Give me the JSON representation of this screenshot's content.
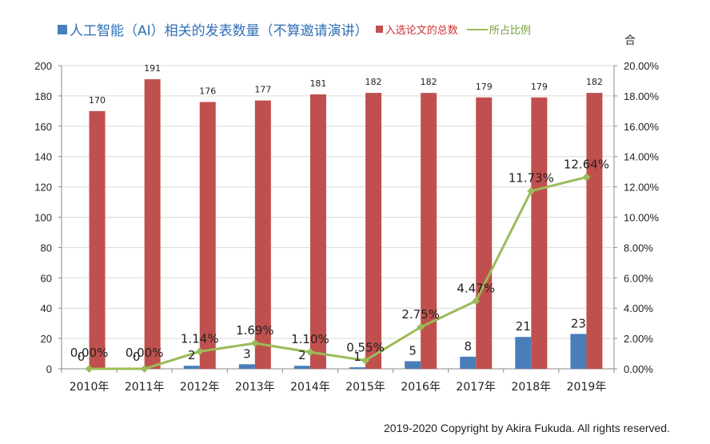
{
  "legend": {
    "blue_label": "人工智能（AI）相关的发表数量（不算邀请演讲）",
    "red_label": "入选论文的总数",
    "green_label": "所占比例"
  },
  "corner_char": "合",
  "copyright": "2019-2020 Copyright by Akira Fukuda. All rights reserved.",
  "colors": {
    "blue": "#4a7ebb",
    "red": "#c0504d",
    "green": "#9bbb59"
  },
  "chart_data": {
    "type": "bar",
    "categories": [
      "2010年",
      "2011年",
      "2012年",
      "2013年",
      "2014年",
      "2015年",
      "2016年",
      "2017年",
      "2018年",
      "2019年"
    ],
    "series": [
      {
        "name": "人工智能（AI）相关的发表数量（不算邀请演讲）",
        "type": "bar",
        "axis": "left",
        "values": [
          0,
          0,
          2,
          3,
          2,
          1,
          5,
          8,
          21,
          23
        ],
        "labels": [
          "0",
          "0",
          "2",
          "3",
          "2",
          "1",
          "5",
          "8",
          "21",
          "23"
        ]
      },
      {
        "name": "入选论文的总数",
        "type": "bar",
        "axis": "left",
        "values": [
          170,
          191,
          176,
          177,
          181,
          182,
          182,
          179,
          179,
          182
        ],
        "labels": [
          "170",
          "191",
          "176",
          "177",
          "181",
          "182",
          "182",
          "179",
          "179",
          "182"
        ]
      },
      {
        "name": "所占比例",
        "type": "line",
        "axis": "right",
        "values": [
          0,
          0,
          1.14,
          1.69,
          1.1,
          0.55,
          2.75,
          4.47,
          11.73,
          12.64
        ],
        "labels": [
          "0.00%",
          "0.00%",
          "1.14%",
          "1.69%",
          "1.10%",
          "0.55%",
          "2.75%",
          "4.47%",
          "11.73%",
          "12.64%"
        ]
      }
    ],
    "ylim": [
      0,
      200
    ],
    "yticks": [
      "0",
      "20",
      "40",
      "60",
      "80",
      "100",
      "120",
      "140",
      "160",
      "180",
      "200"
    ],
    "y2lim": [
      0,
      20
    ],
    "y2ticks": [
      "0.00%",
      "2.00%",
      "4.00%",
      "6.00%",
      "8.00%",
      "10.00%",
      "12.00%",
      "14.00%",
      "16.00%",
      "18.00%",
      "20.00%"
    ],
    "grid": true,
    "legend_position": "top"
  }
}
